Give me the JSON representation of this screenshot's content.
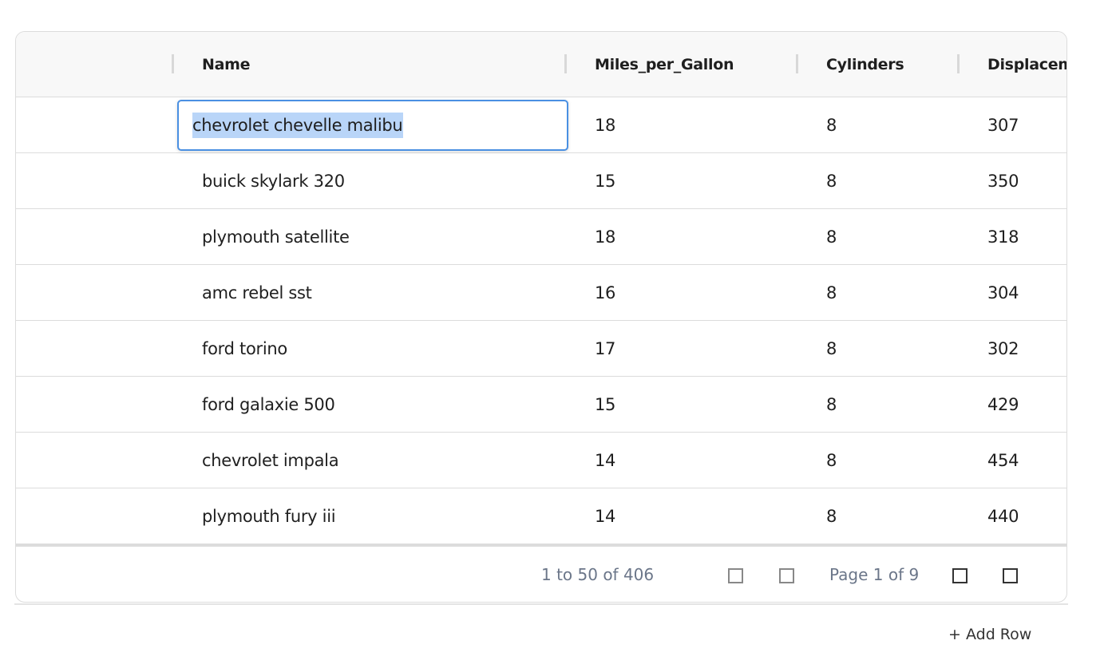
{
  "columns": [
    "Name",
    "Miles_per_Gallon",
    "Cylinders",
    "Displacement"
  ],
  "editing_value": "chevrolet chevelle malibu",
  "rows": [
    [
      "chevrolet chevelle malibu",
      "18",
      "8",
      "307"
    ],
    [
      "buick skylark 320",
      "15",
      "8",
      "350"
    ],
    [
      "plymouth satellite",
      "18",
      "8",
      "318"
    ],
    [
      "amc rebel sst",
      "16",
      "8",
      "304"
    ],
    [
      "ford torino",
      "17",
      "8",
      "302"
    ],
    [
      "ford galaxie 500",
      "15",
      "8",
      "429"
    ],
    [
      "chevrolet impala",
      "14",
      "8",
      "454"
    ],
    [
      "plymouth fury iii",
      "14",
      "8",
      "440"
    ]
  ],
  "footer": {
    "range": "1 to 50 of 406",
    "page": "Page 1 of 9"
  },
  "add_row": {
    "icon": "+",
    "label": "Add Row"
  },
  "colors": {
    "accent": "#4a90e2",
    "selection": "#b9d5f8"
  }
}
